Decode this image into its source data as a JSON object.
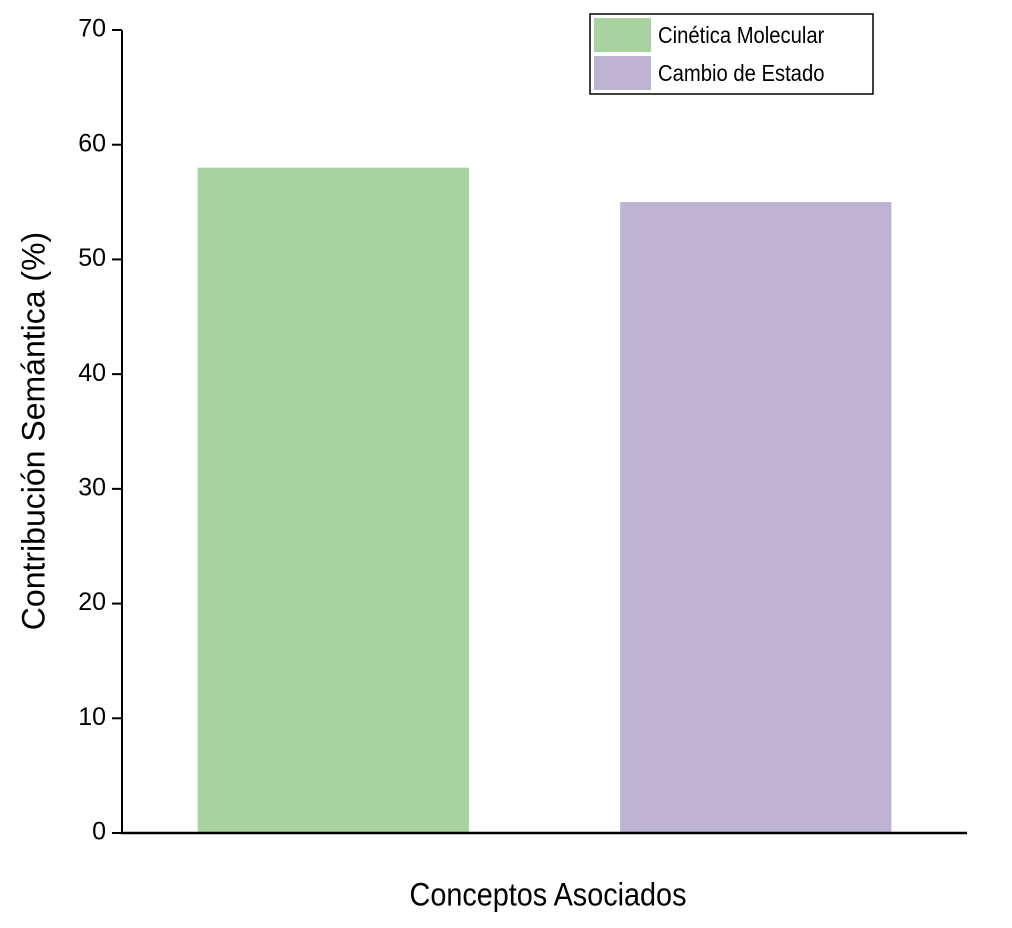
{
  "chart_data": {
    "type": "bar",
    "y_label": "Contribución Semántica (%)",
    "x_label": "Conceptos Asociados",
    "categories": [
      null,
      null
    ],
    "series": [
      {
        "name": "Cinética Molecular",
        "color": "#a8d3a0",
        "values": [
          58,
          null
        ]
      },
      {
        "name": "Cambio de Estado",
        "color": "#bfb3d4",
        "values": [
          null,
          55
        ]
      }
    ],
    "ylim": [
      0,
      70
    ],
    "yticks": [
      0,
      10,
      20,
      30,
      40,
      50,
      60,
      70
    ],
    "legend": "top-right"
  }
}
